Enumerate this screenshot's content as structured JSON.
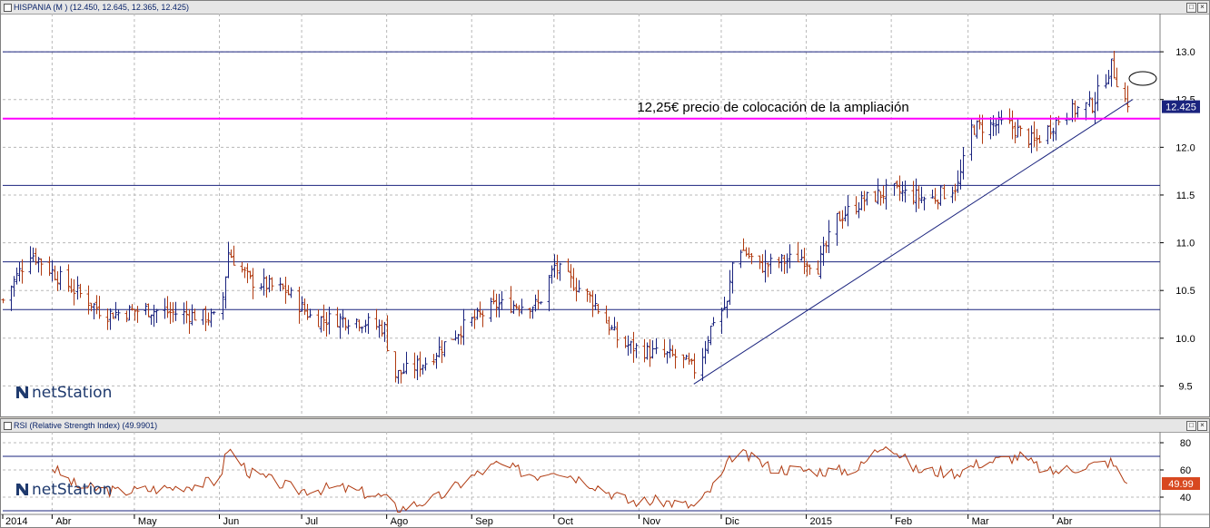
{
  "price_panel": {
    "title": "HISPANIA (M ) (12.450, 12.645, 12.365, 12.425)",
    "last_value_label": "12.425",
    "logo_text": "netStation",
    "annotation": "12,25€ precio de colocación de la ampliación"
  },
  "rsi_panel": {
    "title": "RSI (Relative Strength Index) (49.9901)",
    "last_value_label": "49.99",
    "logo_text": "netStation"
  },
  "x_axis_labels": [
    "2014",
    "Abr",
    "May",
    "Jun",
    "Jul",
    "Ago",
    "Sep",
    "Oct",
    "Nov",
    "Dic",
    "2015",
    "Feb",
    "Mar",
    "Abr"
  ],
  "colors": {
    "up_bar": "#1a237e",
    "down_bar": "#b03a10",
    "reference_line": "#ff00ff",
    "trend_line": "#1a237e",
    "rsi_line": "#b03a10",
    "last_value_bg": "#1a237e",
    "rsi_last_bg": "#d84820"
  },
  "chart_data": [
    {
      "type": "ohlc",
      "title": "HISPANIA (M ) (12.450, 12.645, 12.365, 12.425)",
      "last": {
        "open": 12.45,
        "high": 12.645,
        "low": 12.365,
        "close": 12.425
      },
      "ylim": [
        9.2,
        13.4
      ],
      "yticks": [
        9.5,
        10.0,
        10.5,
        11.0,
        11.5,
        12.0,
        12.5,
        13.0
      ],
      "horizontal_lines": [
        10.3,
        10.8,
        11.6,
        13.0
      ],
      "reference_line": {
        "value": 12.3,
        "label": "12,25€ precio de colocación de la ampliación"
      },
      "trendline": {
        "from": {
          "date": "2014-11-21",
          "value": 9.52
        },
        "to": {
          "date": "2015-04-30",
          "value": 12.5
        }
      },
      "x_range": [
        "2014-03-14",
        "2015-05-10"
      ],
      "month_ticks": [
        {
          "label": "2014",
          "date": "2014-03-14"
        },
        {
          "label": "Abr",
          "date": "2014-04-01"
        },
        {
          "label": "May",
          "date": "2014-05-01"
        },
        {
          "label": "Jun",
          "date": "2014-06-01"
        },
        {
          "label": "Jul",
          "date": "2014-07-01"
        },
        {
          "label": "Ago",
          "date": "2014-08-01"
        },
        {
          "label": "Sep",
          "date": "2014-09-01"
        },
        {
          "label": "Oct",
          "date": "2014-10-01"
        },
        {
          "label": "Nov",
          "date": "2014-11-01"
        },
        {
          "label": "Dic",
          "date": "2014-12-01"
        },
        {
          "label": "2015",
          "date": "2015-01-01"
        },
        {
          "label": "Feb",
          "date": "2015-02-01"
        },
        {
          "label": "Mar",
          "date": "2015-03-01"
        },
        {
          "label": "Abr",
          "date": "2015-04-01"
        }
      ],
      "close_anchors": [
        [
          "2014-03-14",
          10.4
        ],
        [
          "2014-03-24",
          10.9
        ],
        [
          "2014-04-05",
          10.6
        ],
        [
          "2014-04-20",
          10.25
        ],
        [
          "2014-05-05",
          10.3
        ],
        [
          "2014-05-20",
          10.25
        ],
        [
          "2014-06-01",
          10.2
        ],
        [
          "2014-06-04",
          10.9
        ],
        [
          "2014-06-12",
          10.6
        ],
        [
          "2014-06-25",
          10.5
        ],
        [
          "2014-07-05",
          10.2
        ],
        [
          "2014-07-20",
          10.2
        ],
        [
          "2014-07-31",
          10.1
        ],
        [
          "2014-08-03",
          9.6
        ],
        [
          "2014-08-15",
          9.75
        ],
        [
          "2014-08-28",
          10.1
        ],
        [
          "2014-09-10",
          10.35
        ],
        [
          "2014-09-25",
          10.35
        ],
        [
          "2014-10-01",
          10.75
        ],
        [
          "2014-10-15",
          10.4
        ],
        [
          "2014-10-25",
          9.95
        ],
        [
          "2014-11-05",
          9.85
        ],
        [
          "2014-11-15",
          9.8
        ],
        [
          "2014-11-22",
          9.65
        ],
        [
          "2014-11-28",
          10.2
        ],
        [
          "2014-12-03",
          10.35
        ],
        [
          "2014-12-06",
          11.0
        ],
        [
          "2014-12-15",
          10.75
        ],
        [
          "2014-12-30",
          10.85
        ],
        [
          "2015-01-05",
          10.75
        ],
        [
          "2015-01-12",
          11.25
        ],
        [
          "2015-01-22",
          11.45
        ],
        [
          "2015-02-01",
          11.55
        ],
        [
          "2015-02-15",
          11.45
        ],
        [
          "2015-02-25",
          11.6
        ],
        [
          "2015-03-02",
          12.2
        ],
        [
          "2015-03-15",
          12.25
        ],
        [
          "2015-03-25",
          12.05
        ],
        [
          "2015-04-05",
          12.35
        ],
        [
          "2015-04-15",
          12.45
        ],
        [
          "2015-04-22",
          12.85
        ],
        [
          "2015-04-28",
          12.425
        ]
      ]
    },
    {
      "type": "line",
      "title": "RSI (Relative Strength Index) (49.9901)",
      "series": [
        {
          "name": "RSI (Relative Strength Index)",
          "last": 49.9901
        }
      ],
      "ylim": [
        28,
        88
      ],
      "yticks": [
        40,
        60,
        80
      ],
      "horizontal_lines": [
        30,
        70
      ],
      "rsi_anchors": [
        [
          "2014-04-01",
          62
        ],
        [
          "2014-04-10",
          48
        ],
        [
          "2014-04-25",
          44
        ],
        [
          "2014-05-15",
          47
        ],
        [
          "2014-06-01",
          52
        ],
        [
          "2014-06-04",
          76
        ],
        [
          "2014-06-12",
          58
        ],
        [
          "2014-06-30",
          45
        ],
        [
          "2014-07-15",
          47
        ],
        [
          "2014-07-31",
          40
        ],
        [
          "2014-08-05",
          31
        ],
        [
          "2014-08-20",
          40
        ],
        [
          "2014-09-01",
          55
        ],
        [
          "2014-09-10",
          64
        ],
        [
          "2014-09-25",
          56
        ],
        [
          "2014-10-01",
          61
        ],
        [
          "2014-10-15",
          50
        ],
        [
          "2014-10-28",
          37
        ],
        [
          "2014-11-10",
          37
        ],
        [
          "2014-11-22",
          33
        ],
        [
          "2014-12-01",
          55
        ],
        [
          "2014-12-06",
          74
        ],
        [
          "2014-12-20",
          61
        ],
        [
          "2015-01-10",
          59
        ],
        [
          "2015-01-20",
          61
        ],
        [
          "2015-01-30",
          81
        ],
        [
          "2015-02-10",
          60
        ],
        [
          "2015-02-25",
          58
        ],
        [
          "2015-03-05",
          65
        ],
        [
          "2015-03-20",
          70
        ],
        [
          "2015-03-30",
          58
        ],
        [
          "2015-04-10",
          62
        ],
        [
          "2015-04-22",
          66
        ],
        [
          "2015-04-28",
          50
        ]
      ]
    }
  ]
}
